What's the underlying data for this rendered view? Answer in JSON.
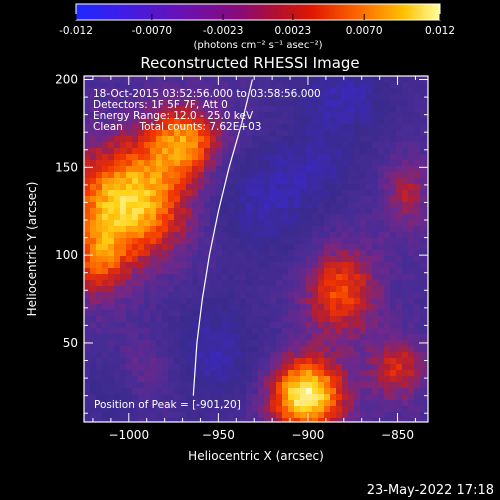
{
  "colorbar": {
    "tick_labels": [
      "-0.012",
      "-0.0070",
      "-0.0023",
      "0.0023",
      "0.0070",
      "0.012"
    ],
    "tick_values": [
      -0.012,
      -0.007,
      -0.0023,
      0.0023,
      0.007,
      0.012
    ],
    "range": [
      -0.012,
      0.012
    ],
    "units_label": "(photons cm⁻² s⁻¹ asec⁻²)"
  },
  "plot": {
    "title": "Reconstructed RHESSI Image",
    "info_lines": [
      "18-Oct-2015 03:52:56.000 to 03:58:56.000",
      "Detectors: 1F 5F 7F, Att 0",
      "Energy Range: 12.0 - 25.0 keV",
      "Clean     Total counts: 7.62E+03"
    ],
    "peak_label": "Position of Peak = [-901,20]",
    "footer_date": "23-May-2022 17:18"
  },
  "colors": {
    "background": "#000000",
    "foreground": "#ffffff",
    "limb_line": "#ffffff",
    "colormap": [
      "#1e28ff",
      "#6a10b0",
      "#3b2b88",
      "#4b2f96",
      "#6f2a8c",
      "#b8212e",
      "#ff3a00",
      "#ff9a00",
      "#ffe81a",
      "#ffffff"
    ]
  },
  "chart_data": {
    "type": "heatmap",
    "title": "Reconstructed RHESSI Image",
    "xlabel": "Heliocentric X (arcsec)",
    "ylabel": "Heliocentric Y (arcsec)",
    "xlim": [
      -1025,
      -833
    ],
    "ylim": [
      5,
      202
    ],
    "x_ticks": [
      -1000,
      -950,
      -900,
      -850
    ],
    "x_tick_labels": [
      "−1000",
      "−950",
      "−900",
      "−850"
    ],
    "y_ticks": [
      50,
      100,
      150,
      200
    ],
    "y_tick_labels": [
      "50",
      "100",
      "150",
      "200"
    ],
    "value_range": [
      -0.012,
      0.012
    ],
    "sources": [
      {
        "x": -1000,
        "y": 130,
        "sx": 24,
        "sy": 24,
        "amp": 0.011
      },
      {
        "x": -968,
        "y": 165,
        "sx": 15,
        "sy": 15,
        "amp": 0.008
      },
      {
        "x": -1017,
        "y": 95,
        "sx": 11,
        "sy": 16,
        "amp": 0.005
      },
      {
        "x": -901,
        "y": 20,
        "sx": 15,
        "sy": 15,
        "amp": 0.0125
      },
      {
        "x": -882,
        "y": 80,
        "sx": 15,
        "sy": 19,
        "amp": 0.007
      },
      {
        "x": -850,
        "y": 35,
        "sx": 11,
        "sy": 13,
        "amp": 0.0055
      },
      {
        "x": -845,
        "y": 135,
        "sx": 9,
        "sy": 15,
        "amp": 0.0045
      },
      {
        "x": -990,
        "y": 35,
        "sx": 12,
        "sy": 12,
        "amp": 0.0025
      },
      {
        "x": -925,
        "y": 130,
        "sx": 22,
        "sy": 22,
        "amp": -0.0045
      },
      {
        "x": -952,
        "y": 45,
        "sx": 18,
        "sy": 22,
        "amp": -0.0045
      },
      {
        "x": -880,
        "y": 190,
        "sx": 20,
        "sy": 18,
        "amp": -0.0045
      },
      {
        "x": -1010,
        "y": 20,
        "sx": 12,
        "sy": 14,
        "amp": -0.0025
      },
      {
        "x": -895,
        "y": 150,
        "sx": 16,
        "sy": 14,
        "amp": -0.003
      }
    ],
    "baseline": -0.001,
    "limb": {
      "x": [
        -931,
        -937,
        -944,
        -950,
        -955,
        -959,
        -962,
        -964
      ],
      "y": [
        200,
        175,
        150,
        125,
        100,
        75,
        50,
        20
      ]
    },
    "peak": {
      "x": -901,
      "y": 20
    }
  }
}
